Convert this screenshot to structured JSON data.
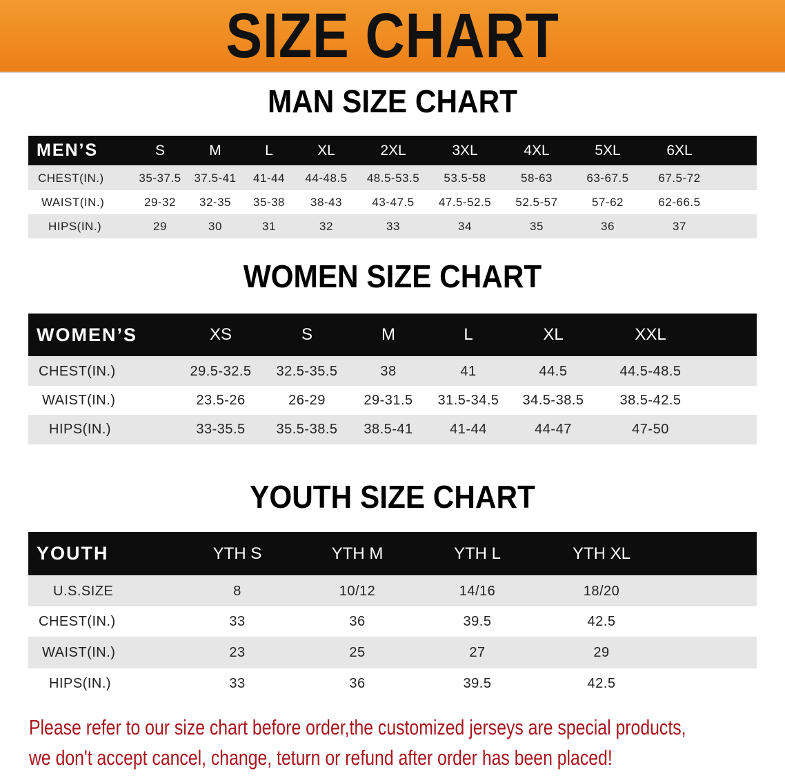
{
  "banner": {
    "title": "SIZE CHART",
    "color": "#ee8a20"
  },
  "tables": [
    {
      "title": "MAN SIZE CHART",
      "header_label": "MEN’S",
      "columns": [
        "S",
        "M",
        "L",
        "XL",
        "2XL",
        "3XL",
        "4XL",
        "5XL",
        "6XL"
      ],
      "rows": [
        {
          "label": "CHEST(IN.)",
          "values": [
            "35-37.5",
            "37.5-41",
            "41-44",
            "44-48.5",
            "48.5-53.5",
            "53.5-58",
            "58-63",
            "63-67.5",
            "67.5-72"
          ]
        },
        {
          "label": "WAIST(IN.)",
          "values": [
            "29-32",
            "32-35",
            "35-38",
            "38-43",
            "43-47.5",
            "47.5-52.5",
            "52.5-57",
            "57-62",
            "62-66.5"
          ]
        },
        {
          "label": "HIPS(IN.)",
          "values": [
            "29",
            "30",
            "31",
            "32",
            "33",
            "34",
            "35",
            "36",
            "37"
          ]
        }
      ]
    },
    {
      "title": "WOMEN SIZE CHART",
      "header_label": "WOMEN’S",
      "columns": [
        "XS",
        "S",
        "M",
        "L",
        "XL",
        "XXL"
      ],
      "rows": [
        {
          "label": "CHEST(IN.)",
          "values": [
            "29.5-32.5",
            "32.5-35.5",
            "38",
            "41",
            "44.5",
            "44.5-48.5"
          ]
        },
        {
          "label": "WAIST(IN.)",
          "values": [
            "23.5-26",
            "26-29",
            "29-31.5",
            "31.5-34.5",
            "34.5-38.5",
            "38.5-42.5"
          ]
        },
        {
          "label": "HIPS(IN.)",
          "values": [
            "33-35.5",
            "35.5-38.5",
            "38.5-41",
            "41-44",
            "44-47",
            "47-50"
          ]
        }
      ]
    },
    {
      "title": "YOUTH SIZE CHART",
      "header_label": "YOUTH",
      "columns": [
        "YTH S",
        "YTH M",
        "YTH L",
        "YTH XL"
      ],
      "rows": [
        {
          "label": "U.S.SIZE",
          "values": [
            "8",
            "10/12",
            "14/16",
            "18/20"
          ]
        },
        {
          "label": "CHEST(IN.)",
          "values": [
            "33",
            "36",
            "39.5",
            "42.5"
          ]
        },
        {
          "label": "WAIST(IN.)",
          "values": [
            "23",
            "25",
            "27",
            "29"
          ]
        },
        {
          "label": "HIPS(IN.)",
          "values": [
            "33",
            "36",
            "39.5",
            "42.5"
          ]
        }
      ]
    }
  ],
  "notice": {
    "line1": "Please refer to our size chart before order,the customized jerseys are special products,",
    "line2": "we don't accept cancel, change, teturn or refund after order has been placed!",
    "color": "#a8141c"
  }
}
